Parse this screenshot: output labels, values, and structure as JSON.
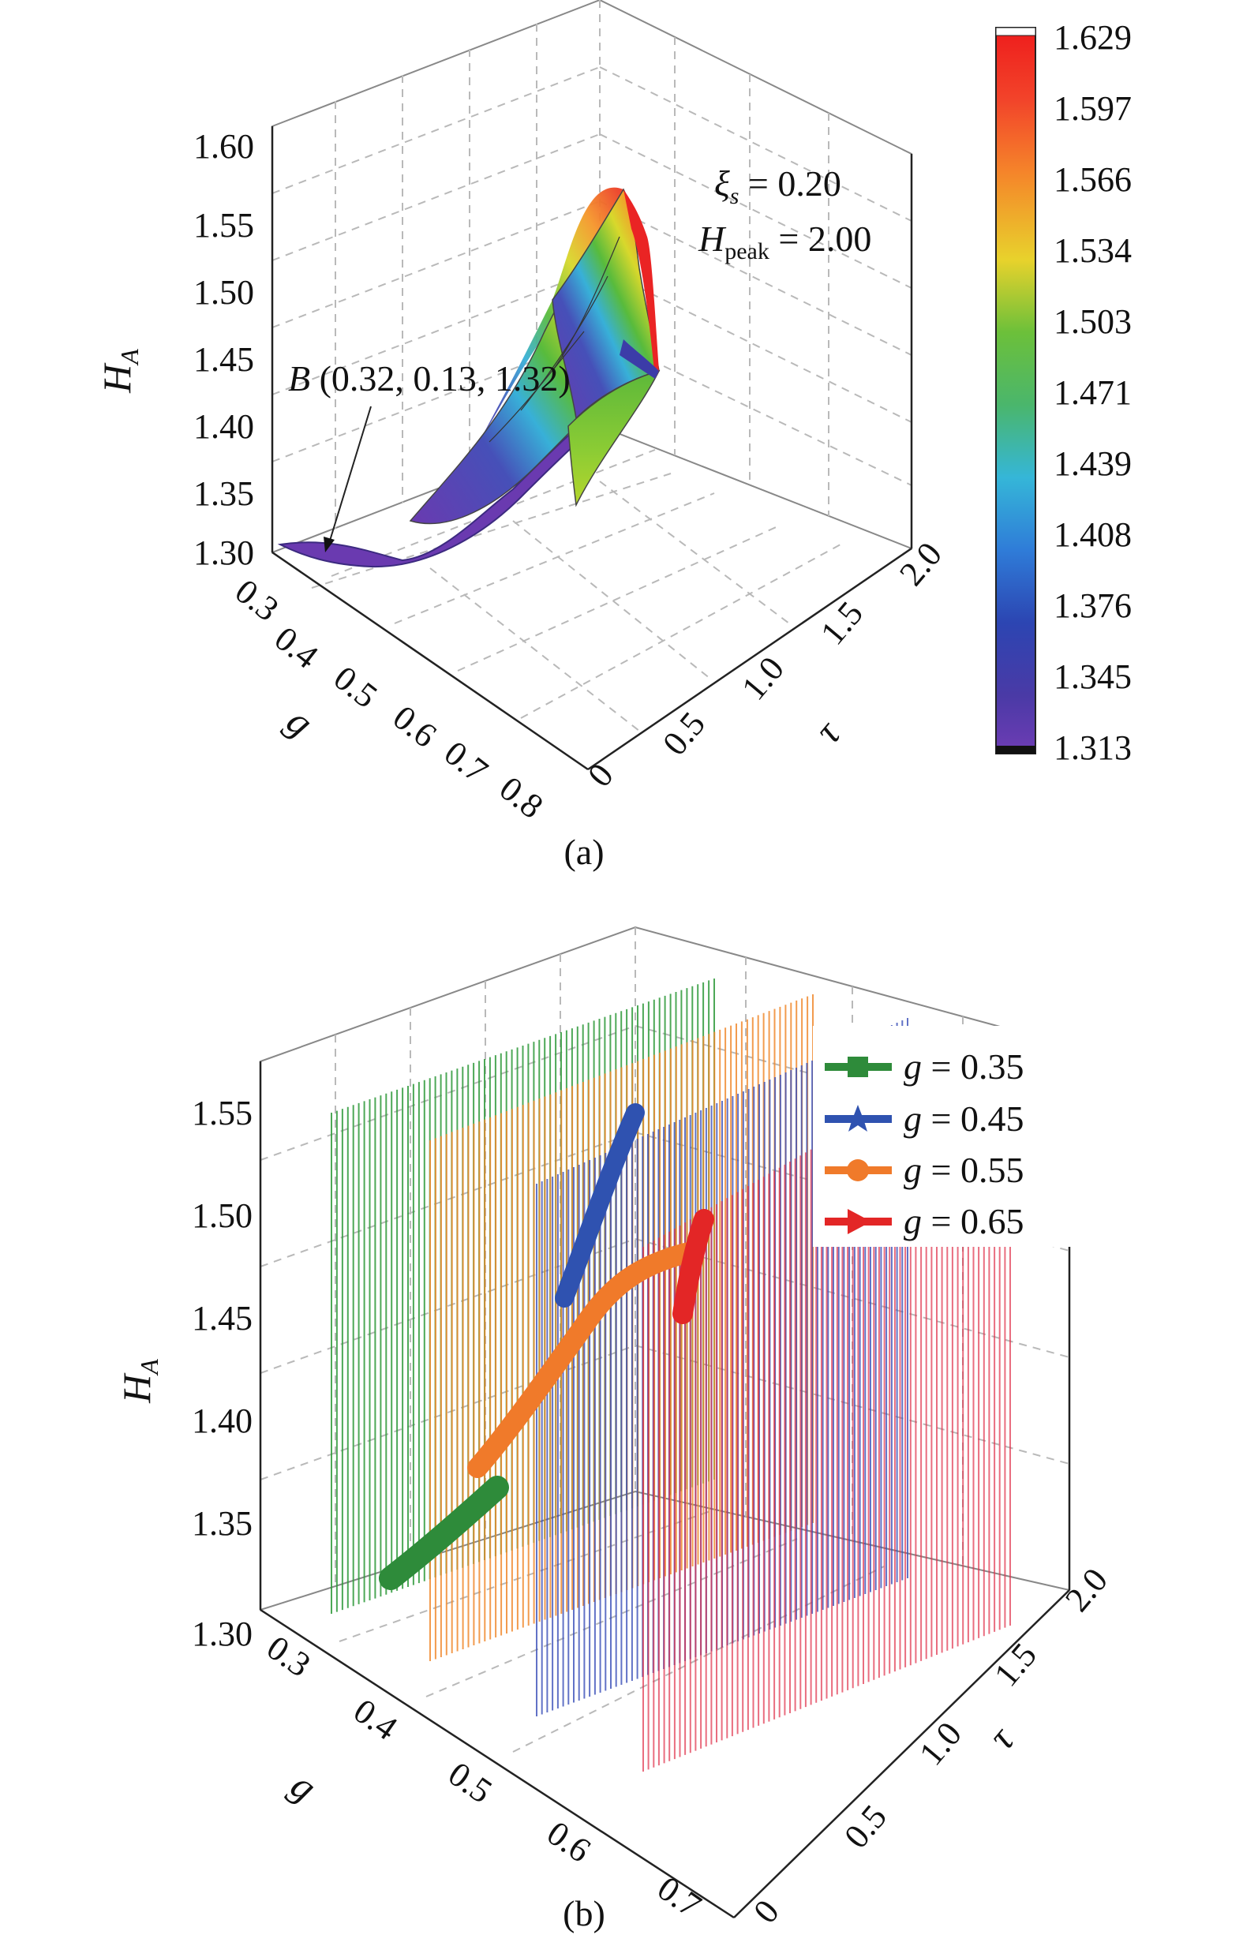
{
  "chart_data": [
    {
      "panel": "(a)",
      "type": "surface3d",
      "zlabel": "H",
      "zlabel_sub": "A",
      "xlabel": "g",
      "ylabel": "τ",
      "z_ticks": [
        "1.30",
        "1.35",
        "1.40",
        "1.45",
        "1.50",
        "1.55",
        "1.60"
      ],
      "g_ticks": [
        "0.3",
        "0.4",
        "0.5",
        "0.6",
        "0.7",
        "0.8"
      ],
      "tau_ticks": [
        "0",
        "0.5",
        "1.0",
        "1.5",
        "2.0"
      ],
      "zlim": [
        1.3,
        1.6
      ],
      "glim": [
        0.3,
        0.8
      ],
      "taulim": [
        0,
        2.0
      ],
      "annotation_xi": "ξ",
      "annotation_xi_sub": "s",
      "annotation_xi_val": " = 0.20",
      "annotation_h": "H",
      "annotation_h_sub": "peak",
      "annotation_h_val": " = 2.00",
      "point_label_letter": "B",
      "point_label_coords": " (0.32, 0.13, 1.32)",
      "point": {
        "g": 0.32,
        "tau": 0.13,
        "H_A": 1.32
      },
      "colorbar_ticks": [
        "1.629",
        "1.597",
        "1.566",
        "1.534",
        "1.503",
        "1.471",
        "1.439",
        "1.408",
        "1.376",
        "1.345",
        "1.313"
      ],
      "colorbar_range": [
        1.313,
        1.629
      ],
      "colorbar_colors": [
        "#ee2020",
        "#f2502a",
        "#f58a2a",
        "#f4c430",
        "#c8dc28",
        "#5cb53a",
        "#3fb8a8",
        "#3a9fe0",
        "#2a5cc4",
        "#3c3ca8",
        "#6a3ab0"
      ]
    },
    {
      "panel": "(b)",
      "type": "line3d",
      "zlabel": "H",
      "zlabel_sub": "A",
      "xlabel": "g",
      "ylabel": "τ",
      "z_ticks": [
        "1.30",
        "1.35",
        "1.40",
        "1.45",
        "1.50",
        "1.55"
      ],
      "g_ticks": [
        "0.3",
        "0.4",
        "0.5",
        "0.6",
        "0.7"
      ],
      "tau_ticks": [
        "0",
        "0.5",
        "1.0",
        "1.5",
        "2.0"
      ],
      "zlim": [
        1.3,
        1.56
      ],
      "glim": [
        0.3,
        0.7
      ],
      "taulim": [
        0,
        2.0
      ],
      "legend_position": "top-right",
      "series": [
        {
          "name_var": "g",
          "name_val": " = 0.35",
          "g": 0.35,
          "color": "#2e8b3a",
          "marker": "square",
          "tau": [
            0.05,
            0.3,
            0.6,
            0.9
          ],
          "H_A": [
            1.305,
            1.325,
            1.345,
            1.365
          ]
        },
        {
          "name_var": "g",
          "name_val": " = 0.45",
          "g": 0.45,
          "color": "#2f52b0",
          "marker": "star",
          "tau": [
            0.8,
            1.0,
            1.2,
            1.4
          ],
          "H_A": [
            1.455,
            1.49,
            1.525,
            1.555
          ]
        },
        {
          "name_var": "g",
          "name_val": " = 0.55",
          "g": 0.55,
          "color": "#f07a2a",
          "marker": "circle",
          "tau": [
            0.1,
            0.4,
            0.8,
            1.2,
            1.6
          ],
          "H_A": [
            1.36,
            1.4,
            1.45,
            1.49,
            1.505
          ]
        },
        {
          "name_var": "g",
          "name_val": " = 0.65",
          "g": 0.65,
          "color": "#e32626",
          "marker": "triangle",
          "tau": [
            1.0,
            1.1,
            1.2
          ],
          "H_A": [
            1.435,
            1.455,
            1.475
          ]
        }
      ]
    }
  ],
  "captions": {
    "a": "(a)",
    "b": "(b)"
  }
}
